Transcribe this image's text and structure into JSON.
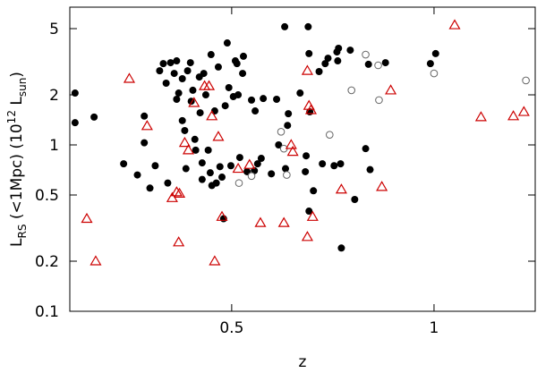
{
  "chart_data": {
    "type": "scatter",
    "xlabel": "z",
    "ylabel_parts": [
      "L",
      "RS",
      " (<1Mpc)  (10",
      "12",
      " L",
      "sun",
      ")"
    ],
    "xlim": [
      0.1,
      1.25
    ],
    "xticks": [
      0.5,
      1
    ],
    "ylim": [
      0.1,
      6.73
    ],
    "yscale": "log",
    "yticks": [
      0.1,
      0.2,
      0.5,
      1,
      2,
      5
    ],
    "series": [
      {
        "marker": "circle",
        "color": "#000000",
        "x": [
          0.113,
          0.113,
          0.16,
          0.233,
          0.267,
          0.284,
          0.284,
          0.298,
          0.311,
          0.322,
          0.331,
          0.338,
          0.342,
          0.349,
          0.358,
          0.364,
          0.364,
          0.369,
          0.378,
          0.378,
          0.384,
          0.387,
          0.391,
          0.398,
          0.4,
          0.404,
          0.409,
          0.411,
          0.42,
          0.422,
          0.427,
          0.427,
          0.431,
          0.436,
          0.442,
          0.447,
          0.449,
          0.451,
          0.458,
          0.462,
          0.467,
          0.471,
          0.476,
          0.48,
          0.484,
          0.489,
          0.493,
          0.498,
          0.504,
          0.509,
          0.513,
          0.516,
          0.52,
          0.527,
          0.529,
          0.538,
          0.549,
          0.556,
          0.558,
          0.564,
          0.573,
          0.578,
          0.598,
          0.611,
          0.616,
          0.631,
          0.633,
          0.638,
          0.64,
          0.669,
          0.682,
          0.684,
          0.689,
          0.691,
          0.693,
          0.691,
          0.702,
          0.716,
          0.724,
          0.731,
          0.738,
          0.753,
          0.76,
          0.764,
          0.762,
          0.769,
          0.771,
          0.793,
          0.804,
          0.831,
          0.838,
          0.842,
          0.88,
          0.991,
          1.004
        ],
        "values": [
          2.05,
          1.36,
          1.47,
          0.77,
          0.66,
          1.03,
          1.49,
          0.55,
          0.75,
          2.79,
          3.08,
          2.35,
          0.59,
          3.12,
          2.69,
          3.2,
          1.88,
          2.05,
          2.5,
          1.4,
          1.22,
          0.72,
          2.79,
          3.12,
          1.83,
          2.13,
          1.08,
          0.93,
          2.56,
          1.56,
          0.78,
          0.62,
          2.69,
          2,
          0.93,
          0.68,
          3.49,
          0.57,
          1.6,
          0.59,
          2.94,
          0.74,
          0.64,
          0.36,
          1.72,
          4.1,
          2.21,
          0.75,
          1.95,
          3.2,
          3.08,
          2,
          0.84,
          2.69,
          3.41,
          0.69,
          1.86,
          0.7,
          1.6,
          0.77,
          0.83,
          1.9,
          0.67,
          1.88,
          1,
          5.13,
          0.72,
          1.31,
          1.54,
          2.05,
          0.69,
          0.86,
          5.13,
          3.54,
          1.58,
          0.4,
          0.53,
          2.76,
          0.77,
          3.08,
          3.32,
          0.75,
          3.62,
          3.81,
          3.2,
          0.77,
          0.24,
          3.71,
          0.47,
          0.95,
          3.05,
          0.71,
          3.12,
          3.08,
          3.54
        ]
      },
      {
        "marker": "circle-open",
        "color": "#666666",
        "x": [
          0.518,
          0.549,
          0.622,
          0.629,
          0.636,
          0.742,
          0.796,
          0.831,
          0.862,
          0.864,
          1.0,
          1.227
        ],
        "values": [
          0.59,
          0.65,
          1.2,
          0.95,
          0.66,
          1.15,
          2.13,
          3.49,
          3.01,
          1.86,
          2.69,
          2.44
        ]
      },
      {
        "marker": "triangle-open",
        "color": "#cc0000",
        "x": [
          0.142,
          0.164,
          0.247,
          0.291,
          0.353,
          0.364,
          0.369,
          0.371,
          0.384,
          0.393,
          0.407,
          0.433,
          0.444,
          0.451,
          0.458,
          0.467,
          0.476,
          0.516,
          0.544,
          0.571,
          0.629,
          0.647,
          0.651,
          0.687,
          0.687,
          0.691,
          0.696,
          0.7,
          0.771,
          0.871,
          0.893,
          1.051,
          1.116,
          1.196,
          1.222
        ],
        "values": [
          0.36,
          0.2,
          2.5,
          1.3,
          0.48,
          0.52,
          0.26,
          0.51,
          1.03,
          0.93,
          1.79,
          2.26,
          2.26,
          1.49,
          0.2,
          1.12,
          0.37,
          0.72,
          0.76,
          0.34,
          0.34,
          1,
          0.91,
          2.79,
          0.28,
          1.72,
          1.62,
          0.37,
          0.54,
          0.56,
          2.13,
          5.25,
          1.47,
          1.49,
          1.58
        ]
      }
    ]
  }
}
